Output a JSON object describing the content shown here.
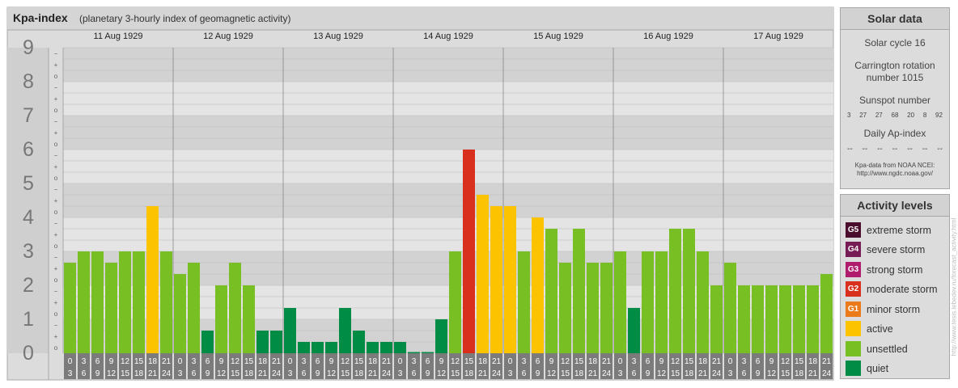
{
  "chart_data": {
    "type": "bar",
    "title": "Kpa-index",
    "subtitle": "(planetary 3-hourly index of geomagnetic activity)",
    "ylim": [
      0,
      9
    ],
    "y_ticks": [
      "0",
      "1",
      "2",
      "3",
      "4",
      "5",
      "6",
      "7",
      "8",
      "9"
    ],
    "y_minor_labels": [
      "o",
      "+",
      "−"
    ],
    "days": [
      "11 Aug 1929",
      "12 Aug 1929",
      "13 Aug 1929",
      "14 Aug 1929",
      "15 Aug 1929",
      "16 Aug 1929",
      "17 Aug 1929"
    ],
    "interval_labels": [
      [
        "0",
        "3"
      ],
      [
        "3",
        "6"
      ],
      [
        "6",
        "9"
      ],
      [
        "9",
        "12"
      ],
      [
        "12",
        "15"
      ],
      [
        "15",
        "18"
      ],
      [
        "18",
        "21"
      ],
      [
        "21",
        "24"
      ]
    ],
    "values": [
      2.667,
      3.0,
      3.0,
      2.667,
      3.0,
      3.0,
      4.333,
      3.0,
      2.333,
      2.667,
      0.667,
      2.0,
      2.667,
      2.0,
      0.667,
      0.667,
      1.333,
      0.333,
      0.333,
      0.333,
      1.333,
      0.667,
      0.333,
      0.333,
      0.333,
      0.0,
      0.0,
      1.0,
      3.0,
      6.0,
      4.667,
      4.333,
      4.333,
      3.0,
      4.0,
      3.667,
      2.667,
      3.667,
      2.667,
      2.667,
      3.0,
      1.333,
      3.0,
      3.0,
      3.667,
      3.667,
      3.0,
      2.0,
      2.667,
      2.0,
      2.0,
      2.0,
      2.0,
      2.0,
      2.0,
      2.333
    ],
    "colors": {
      "quiet": "#008c44",
      "unsettled": "#77bf23",
      "active": "#fcc300",
      "minor": "#ea7a1a",
      "moderate": "#d9301e",
      "strong": "#b01b6e",
      "severe": "#771b54",
      "extreme": "#4a0d2b"
    },
    "grid": true
  },
  "solar": {
    "title": "Solar data",
    "cycle": "Solar cycle 16",
    "carrington_line1": "Carrington rotation",
    "carrington_line2": "number 1015",
    "sunspot_label": "Sunspot number",
    "sunspots": [
      "3",
      "27",
      "27",
      "68",
      "20",
      "8",
      "92"
    ],
    "ap_label": "Daily Ap-index",
    "ap_values": [
      "--",
      "--",
      "--",
      "--",
      "--",
      "--",
      "--"
    ],
    "note_line1": "Kpa-data from NOAA NCEI:",
    "note_line2": "http://www.ngdc.noaa.gov/"
  },
  "activity": {
    "title": "Activity levels",
    "levels": [
      {
        "code": "G5",
        "label": "extreme storm",
        "color": "#4a0d2b"
      },
      {
        "code": "G4",
        "label": "severe storm",
        "color": "#771b54"
      },
      {
        "code": "G3",
        "label": "strong storm",
        "color": "#b01b6e"
      },
      {
        "code": "G2",
        "label": "moderate storm",
        "color": "#d9301e"
      },
      {
        "code": "G1",
        "label": "minor storm",
        "color": "#ea7a1a"
      },
      {
        "code": "",
        "label": "active",
        "color": "#fcc300"
      },
      {
        "code": "",
        "label": "unsettled",
        "color": "#77bf23"
      },
      {
        "code": "",
        "label": "quiet",
        "color": "#008c44"
      }
    ]
  },
  "watermark": "http://www.tesis.lebedev.ru/forecast_activity.html"
}
